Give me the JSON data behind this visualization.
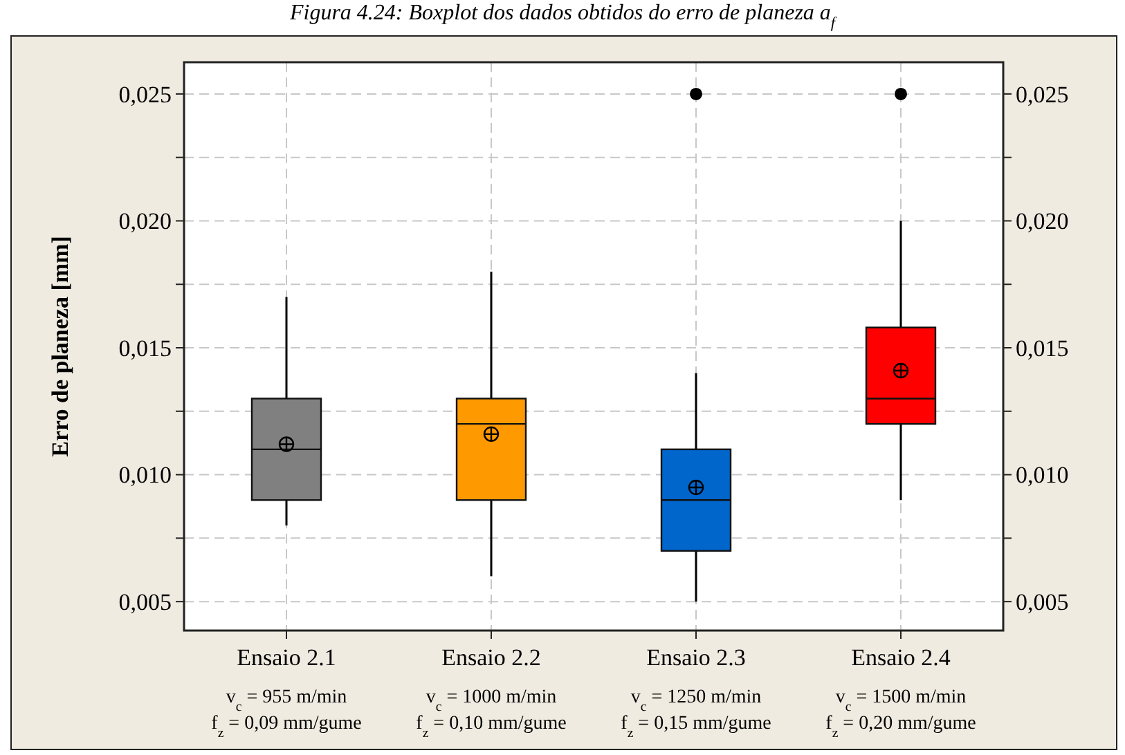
{
  "chart_data": {
    "type": "box",
    "title": "Figura 4.24: Boxplot dos dados obtidos do erro de planeza a$_{f}$",
    "ylabel": "Erro de planeza [mm]",
    "categories": [
      "Ensaio 2.1\nv$_{c}$ = 955 m/min\nf$_{z}$ = 0,09 mm/gume",
      "Ensaio 2.2\nv$_{c}$ = 1000 m/min\nf$_{z}$ = 0,10 mm/gume",
      "Ensaio 2.3\nv$_{c}$ = 1250 m/min\nf$_{z}$ = 0,15 mm/gume",
      "Ensaio 2.4\nv$_{c}$ = 1500 m/min\nf$_{z}$ = 0,20 mm/gume"
    ],
    "colors": [
      "#808080",
      "#ff9900",
      "#0066cc",
      "#ff0000"
    ],
    "boxes": [
      {
        "low": 0.008,
        "q1": 0.009,
        "median": 0.011,
        "q3": 0.013,
        "high": 0.017,
        "mean": 0.0112
      },
      {
        "low": 0.006,
        "q1": 0.009,
        "median": 0.012,
        "q3": 0.013,
        "high": 0.018,
        "mean": 0.0116
      },
      {
        "low": 0.005,
        "q1": 0.007,
        "median": 0.009,
        "q3": 0.011,
        "high": 0.014,
        "mean": 0.0095,
        "outliers": [
          0.025
        ]
      },
      {
        "low": 0.009,
        "q1": 0.012,
        "median": 0.013,
        "q3": 0.0158,
        "high": 0.02,
        "mean": 0.0141,
        "outliers": [
          0.025
        ]
      }
    ],
    "ylim": [
      0.00386,
      0.02625
    ],
    "yticks": [
      {
        "value": 0.005,
        "label": "0,005"
      },
      {
        "value": 0.0075,
        "label": null
      },
      {
        "value": 0.01,
        "label": "0,010"
      },
      {
        "value": 0.0125,
        "label": null
      },
      {
        "value": 0.015,
        "label": "0,015"
      },
      {
        "value": 0.0175,
        "label": null
      },
      {
        "value": 0.02,
        "label": "0,020"
      },
      {
        "value": 0.0225,
        "label": null
      },
      {
        "value": 0.025,
        "label": "0,025"
      }
    ],
    "y2lim": [
      0.00386,
      0.02625
    ],
    "y2ticks": [
      {
        "value": 0.005,
        "label": "0,005"
      },
      {
        "value": 0.0075,
        "label": null
      },
      {
        "value": 0.01,
        "label": "0,010"
      },
      {
        "value": 0.0125,
        "label": null
      },
      {
        "value": 0.015,
        "label": "0,015"
      },
      {
        "value": 0.0175,
        "label": null
      },
      {
        "value": 0.02,
        "label": "0,020"
      },
      {
        "value": 0.0225,
        "label": null
      },
      {
        "value": 0.025,
        "label": "0,025"
      }
    ],
    "grid": true,
    "marker": "circle"
  }
}
